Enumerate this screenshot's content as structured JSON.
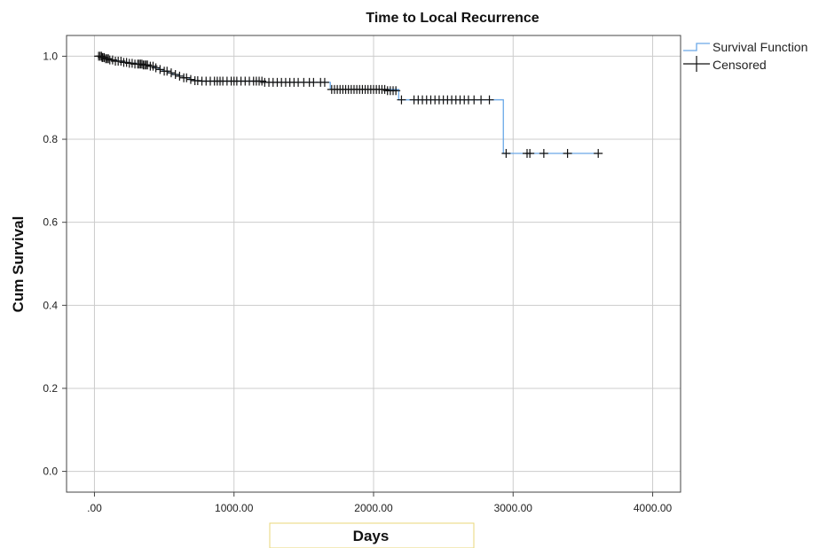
{
  "chart_data": {
    "type": "line",
    "title": "Time to Local Recurrence",
    "xlabel": "Days",
    "ylabel": "Cum Survival",
    "xlim": [
      -200,
      4200
    ],
    "ylim": [
      -0.05,
      1.05
    ],
    "x_ticks": [
      0,
      1000,
      2000,
      3000,
      4000
    ],
    "x_tick_labels": [
      ".00",
      "1000.00",
      "2000.00",
      "3000.00",
      "4000.00"
    ],
    "y_ticks": [
      0.0,
      0.2,
      0.4,
      0.6,
      0.8,
      1.0
    ],
    "y_tick_labels": [
      "0.0",
      "0.2",
      "0.4",
      "0.6",
      "0.8",
      "1.0"
    ],
    "grid": true,
    "legend_position": "top-right",
    "series": [
      {
        "name": "Survival Function",
        "color": "#6aa8e8",
        "step_x": [
          30,
          60,
          90,
          120,
          160,
          200,
          250,
          300,
          350,
          400,
          430,
          460,
          490,
          530,
          560,
          600,
          640,
          680,
          720,
          760,
          1200,
          1690,
          2180,
          2180,
          2930,
          2930,
          3610
        ],
        "step_y": [
          1.0,
          0.997,
          0.994,
          0.991,
          0.988,
          0.985,
          0.983,
          0.981,
          0.979,
          0.976,
          0.972,
          0.968,
          0.964,
          0.96,
          0.956,
          0.952,
          0.948,
          0.944,
          0.941,
          0.94,
          0.937,
          0.92,
          0.917,
          0.895,
          0.895,
          0.766,
          0.766
        ]
      },
      {
        "name": "Censored",
        "color": "#111111",
        "marker": "+",
        "x": [
          30,
          40,
          50,
          55,
          60,
          70,
          80,
          90,
          100,
          110,
          130,
          150,
          170,
          190,
          210,
          230,
          250,
          270,
          290,
          310,
          320,
          330,
          340,
          350,
          360,
          370,
          380,
          400,
          420,
          440,
          470,
          500,
          520,
          550,
          580,
          610,
          640,
          660,
          690,
          720,
          740,
          770,
          800,
          830,
          860,
          880,
          900,
          920,
          950,
          980,
          1000,
          1020,
          1050,
          1080,
          1110,
          1140,
          1160,
          1180,
          1200,
          1220,
          1250,
          1280,
          1310,
          1340,
          1370,
          1400,
          1430,
          1460,
          1500,
          1540,
          1570,
          1620,
          1650,
          1700,
          1720,
          1740,
          1760,
          1780,
          1800,
          1820,
          1840,
          1860,
          1880,
          1900,
          1920,
          1940,
          1960,
          1980,
          2000,
          2020,
          2040,
          2060,
          2080,
          2100,
          2120,
          2140,
          2160,
          2200,
          2290,
          2320,
          2350,
          2380,
          2410,
          2440,
          2470,
          2500,
          2530,
          2560,
          2590,
          2620,
          2650,
          2680,
          2720,
          2770,
          2830,
          2950,
          3100,
          3120,
          3220,
          3390,
          3610
        ],
        "y": [
          1.0,
          1.0,
          1.0,
          0.997,
          0.997,
          0.997,
          0.994,
          0.994,
          0.994,
          0.991,
          0.991,
          0.988,
          0.988,
          0.988,
          0.985,
          0.985,
          0.983,
          0.983,
          0.981,
          0.981,
          0.981,
          0.981,
          0.981,
          0.979,
          0.979,
          0.979,
          0.979,
          0.976,
          0.976,
          0.972,
          0.968,
          0.964,
          0.964,
          0.96,
          0.956,
          0.952,
          0.948,
          0.948,
          0.944,
          0.941,
          0.941,
          0.94,
          0.94,
          0.94,
          0.94,
          0.94,
          0.94,
          0.94,
          0.94,
          0.94,
          0.94,
          0.94,
          0.94,
          0.94,
          0.94,
          0.94,
          0.94,
          0.94,
          0.94,
          0.937,
          0.937,
          0.937,
          0.937,
          0.937,
          0.937,
          0.937,
          0.937,
          0.937,
          0.937,
          0.937,
          0.937,
          0.937,
          0.937,
          0.92,
          0.92,
          0.92,
          0.92,
          0.92,
          0.92,
          0.92,
          0.92,
          0.92,
          0.92,
          0.92,
          0.92,
          0.92,
          0.92,
          0.92,
          0.92,
          0.92,
          0.92,
          0.92,
          0.92,
          0.917,
          0.917,
          0.917,
          0.917,
          0.895,
          0.895,
          0.895,
          0.895,
          0.895,
          0.895,
          0.895,
          0.895,
          0.895,
          0.895,
          0.895,
          0.895,
          0.895,
          0.895,
          0.895,
          0.895,
          0.895,
          0.895,
          0.766,
          0.766,
          0.766,
          0.766,
          0.766,
          0.766
        ]
      }
    ]
  }
}
